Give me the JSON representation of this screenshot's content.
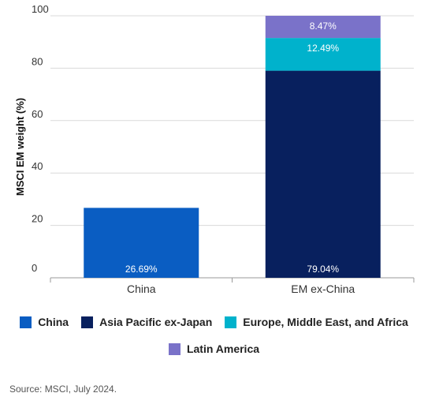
{
  "chart_data": {
    "type": "bar",
    "stacked": true,
    "categories": [
      "China",
      "EM ex-China"
    ],
    "ylabel": "MSCI EM weight (%)",
    "xlabel": "",
    "ylim": [
      0,
      100
    ],
    "yticks": [
      "0",
      "20",
      "40",
      "60",
      "80",
      "100"
    ],
    "grid": true,
    "legend_position": "bottom",
    "series": [
      {
        "name": "China",
        "color": "#0a5dc2",
        "values": [
          26.69,
          0
        ],
        "labels": [
          "26.69%",
          ""
        ]
      },
      {
        "name": "Asia Pacific ex-Japan",
        "color": "#08205e",
        "values": [
          0,
          79.04
        ],
        "labels": [
          "",
          "79.04%"
        ]
      },
      {
        "name": "Europe, Middle East, and Africa",
        "color": "#00b2cc",
        "values": [
          0,
          12.49
        ],
        "labels": [
          "",
          "12.49%"
        ]
      },
      {
        "name": "Latin America",
        "color": "#7a72c9",
        "values": [
          0,
          8.47
        ],
        "labels": [
          "",
          "8.47%"
        ]
      }
    ]
  },
  "legend": {
    "row1": [
      "China",
      "Asia Pacific ex-Japan",
      "Europe, Middle East, and Africa"
    ],
    "row2": [
      "Latin America"
    ]
  },
  "source": "Source: MSCI, July 2024."
}
